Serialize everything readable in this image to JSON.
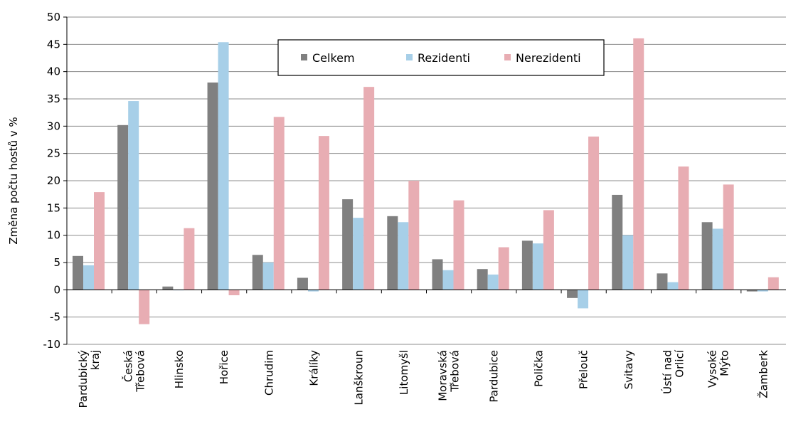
{
  "chart_data": {
    "type": "bar",
    "title": "",
    "xlabel": "",
    "ylabel": "Změna počtu hostů v %",
    "ylim": [
      -10,
      50
    ],
    "yticks": [
      -10,
      -5,
      0,
      5,
      10,
      15,
      20,
      25,
      30,
      35,
      40,
      45,
      50
    ],
    "grid": true,
    "legend_position": "top-center",
    "categories": [
      [
        "Pardubický",
        "kraj"
      ],
      [
        "Česká",
        "Třebová"
      ],
      [
        "Hlinsko"
      ],
      [
        "Hořice"
      ],
      [
        "Chrudim"
      ],
      [
        "Králíky"
      ],
      [
        "Lanškroun"
      ],
      [
        "Litomyšl"
      ],
      [
        "Moravská",
        "Třebová"
      ],
      [
        "Pardubice"
      ],
      [
        "Polička"
      ],
      [
        "Přelouč"
      ],
      [
        "Svitavy"
      ],
      [
        "Ústí nad",
        "Orlicí"
      ],
      [
        "Vysoké",
        "Mýto"
      ],
      [
        "Žamberk"
      ]
    ],
    "series": [
      {
        "name": "Celkem",
        "color": "#808080",
        "values": [
          6.2,
          30.2,
          0.6,
          38.0,
          6.4,
          2.2,
          16.6,
          13.5,
          5.6,
          3.8,
          9.0,
          -1.5,
          17.4,
          3.0,
          12.4,
          -0.3
        ]
      },
      {
        "name": "Rezidenti",
        "color": "#a7cfe8",
        "values": [
          4.5,
          34.6,
          0.0,
          45.4,
          5.0,
          -0.3,
          13.2,
          12.4,
          3.6,
          2.8,
          8.5,
          -3.4,
          10.0,
          1.4,
          11.2,
          -0.3
        ]
      },
      {
        "name": "Nerezidenti",
        "color": "#e8adb3",
        "values": [
          17.9,
          -6.3,
          11.3,
          -1.0,
          31.7,
          28.2,
          37.2,
          20.0,
          16.4,
          7.8,
          14.6,
          28.1,
          46.1,
          22.6,
          19.3,
          2.3
        ]
      }
    ]
  }
}
